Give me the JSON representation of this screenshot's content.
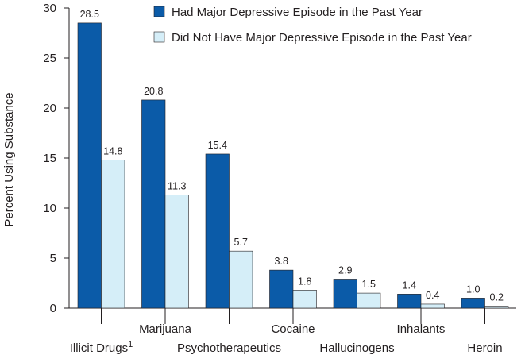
{
  "chart_data": {
    "type": "bar",
    "title": "",
    "xlabel": "",
    "ylabel": "Percent Using Substance",
    "ylim": [
      0,
      30
    ],
    "yticks": [
      0,
      5,
      10,
      15,
      20,
      25,
      30
    ],
    "categories": [
      "Illicit Drugs",
      "Marijuana",
      "Psychotherapeutics",
      "Cocaine",
      "Hallucinogens",
      "Inhalants",
      "Heroin"
    ],
    "category_superscripts": [
      "1",
      "",
      "",
      "",
      "",
      "",
      ""
    ],
    "label_rows": [
      "lower",
      "upper",
      "lower",
      "upper",
      "lower",
      "upper",
      "lower"
    ],
    "series": [
      {
        "name": "Had Major Depressive Episode in the Past Year",
        "color": "#0b5ba8",
        "values": [
          28.5,
          20.8,
          15.4,
          3.8,
          2.9,
          1.4,
          1.0
        ],
        "labels": [
          "28.5",
          "20.8",
          "15.4",
          "3.8",
          "2.9",
          "1.4",
          "1.0"
        ]
      },
      {
        "name": "Did Not Have Major Depressive Episode in the Past Year",
        "color": "#d5eef8",
        "values": [
          14.8,
          11.3,
          5.7,
          1.8,
          1.5,
          0.4,
          0.2
        ],
        "labels": [
          "14.8",
          "11.3",
          "5.7",
          "1.8",
          "1.5",
          "0.4",
          "0.2"
        ]
      }
    ],
    "legend_position": "top-right",
    "grid": false
  }
}
